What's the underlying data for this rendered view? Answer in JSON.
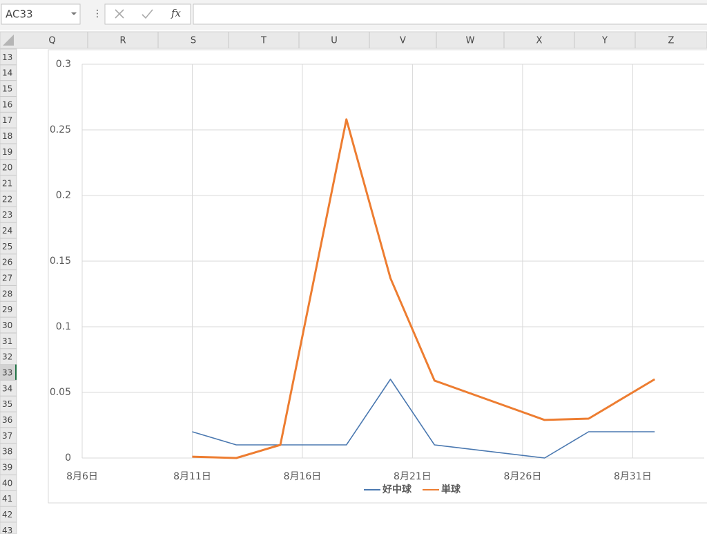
{
  "ui": {
    "name_box": "AC33",
    "fx": "fx",
    "columns": [
      "Q",
      "R",
      "S",
      "T",
      "U",
      "V",
      "W",
      "X",
      "Y",
      "Z"
    ],
    "rows": [
      13,
      14,
      15,
      16,
      17,
      18,
      19,
      20,
      21,
      22,
      23,
      24,
      25,
      26,
      27,
      28,
      29,
      30,
      31,
      32,
      33,
      34,
      35,
      36,
      37,
      38,
      39,
      40,
      41,
      42,
      43
    ],
    "active_row": 33
  },
  "chart_data": {
    "type": "line",
    "x": [
      11,
      13,
      15,
      18,
      20,
      22,
      27,
      29,
      32
    ],
    "series": [
      {
        "name": "好中球",
        "color": "#4a78b0",
        "values": [
          0.02,
          0.01,
          0.01,
          0.01,
          0.06,
          0.01,
          0,
          0.02,
          0.02
        ]
      },
      {
        "name": "単球",
        "color": "#ed7d31",
        "values": [
          0.001,
          0,
          0.01,
          0.258,
          0.137,
          0.059,
          0.029,
          0.03,
          0.06
        ]
      }
    ],
    "xlim": [
      6,
      34.25
    ],
    "xticks": [
      {
        "value": 6,
        "label": "8月6日"
      },
      {
        "value": 11,
        "label": "8月11日"
      },
      {
        "value": 16,
        "label": "8月16日"
      },
      {
        "value": 21,
        "label": "8月21日"
      },
      {
        "value": 26,
        "label": "8月26日"
      },
      {
        "value": 31,
        "label": "8月31日"
      }
    ],
    "ylim": [
      0,
      0.3
    ],
    "yticks": [
      0,
      0.05,
      0.1,
      0.15,
      0.2,
      0.25,
      0.3
    ],
    "grid": true,
    "legend": "bottom"
  }
}
